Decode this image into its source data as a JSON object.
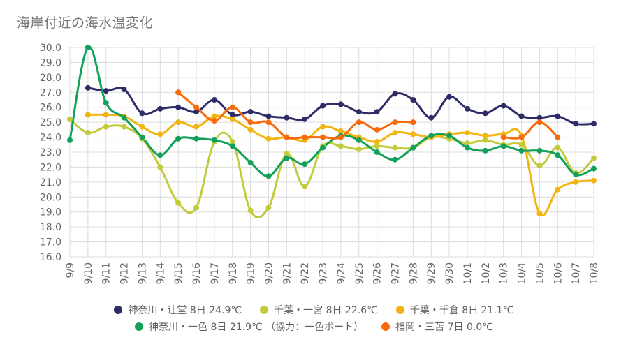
{
  "title": "海岸付近の海水温変化",
  "chart_data": {
    "type": "line",
    "title": "海岸付近の海水温変化",
    "xlabel": "",
    "ylabel": "",
    "ylim": [
      16.0,
      30.0
    ],
    "yticks": [
      "30.0",
      "29.0",
      "28.0",
      "27.0",
      "26.0",
      "25.0",
      "24.0",
      "23.0",
      "22.0",
      "21.0",
      "20.0",
      "19.0",
      "18.0",
      "17.0",
      "16.0"
    ],
    "grid": true,
    "legend_position": "bottom",
    "categories": [
      "9/9",
      "9/10",
      "9/11",
      "9/12",
      "9/13",
      "9/14",
      "9/15",
      "9/16",
      "9/17",
      "9/18",
      "9/19",
      "9/20",
      "9/21",
      "9/22",
      "9/23",
      "9/24",
      "9/25",
      "9/26",
      "9/27",
      "9/28",
      "9/29",
      "9/30",
      "10/1",
      "10/2",
      "10/3",
      "10/4",
      "10/5",
      "10/6",
      "10/7",
      "10/8"
    ],
    "series": [
      {
        "name": "神奈川・辻堂 8日 24.9℃",
        "color": "#2e2c66",
        "values": [
          null,
          27.3,
          27.1,
          27.2,
          25.6,
          25.9,
          26.0,
          25.7,
          26.5,
          25.5,
          25.7,
          25.4,
          25.3,
          25.2,
          26.1,
          26.2,
          25.7,
          25.7,
          26.9,
          26.5,
          25.3,
          26.7,
          25.9,
          25.6,
          26.1,
          25.4,
          25.3,
          25.4,
          24.9,
          24.9
        ]
      },
      {
        "name": "千葉・一宮 8日 22.6℃",
        "color": "#c3cb3a",
        "values": [
          25.2,
          24.3,
          24.7,
          24.7,
          23.9,
          22.0,
          19.6,
          19.3,
          23.7,
          23.7,
          19.1,
          19.3,
          22.9,
          20.7,
          23.4,
          23.4,
          23.2,
          23.4,
          23.3,
          23.3,
          24.0,
          23.9,
          23.6,
          23.8,
          23.5,
          23.5,
          22.1,
          23.3,
          21.6,
          22.6
        ]
      },
      {
        "name": "千葉・千倉 8日 21.1℃",
        "color": "#f2b40e",
        "values": [
          null,
          25.5,
          25.5,
          25.4,
          24.7,
          24.2,
          25.0,
          24.7,
          25.4,
          25.2,
          24.5,
          23.9,
          24.0,
          23.8,
          24.7,
          24.4,
          24.0,
          23.7,
          24.3,
          24.2,
          24.0,
          24.2,
          24.3,
          24.1,
          24.2,
          24.1,
          18.9,
          20.5,
          21.0,
          21.1
        ]
      },
      {
        "name": "神奈川・一色 8日 21.9℃ （協力：一色ボート）",
        "color": "#13a05a",
        "values": [
          23.8,
          30.0,
          26.3,
          25.3,
          24.0,
          22.8,
          23.9,
          23.9,
          23.8,
          23.4,
          22.3,
          21.4,
          22.6,
          22.2,
          23.3,
          24.1,
          23.8,
          23.0,
          22.5,
          23.3,
          24.1,
          24.1,
          23.3,
          23.1,
          23.4,
          23.1,
          23.1,
          22.8,
          21.5,
          21.9
        ]
      },
      {
        "name": "福岡・三苫 7日 0.0℃",
        "color": "#f96a0b",
        "values": [
          null,
          null,
          null,
          null,
          null,
          null,
          27.0,
          26.0,
          25.1,
          26.0,
          25.0,
          25.0,
          24.0,
          24.0,
          24.0,
          24.0,
          25.0,
          24.5,
          25.0,
          25.0,
          null,
          null,
          null,
          null,
          24.0,
          24.0,
          25.0,
          24.0,
          null,
          null
        ]
      }
    ]
  }
}
